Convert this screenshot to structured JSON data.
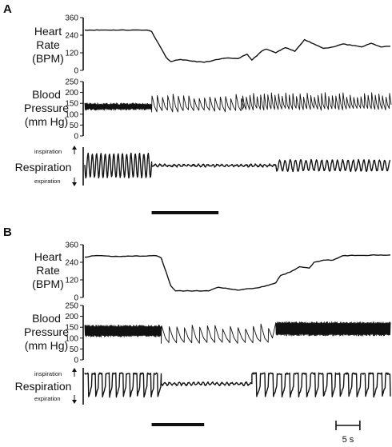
{
  "chart_data": [
    {
      "type": "line",
      "panel": "A",
      "heart_rate": {
        "label": [
          "Heart",
          "Rate",
          "(BPM)"
        ],
        "yticks": [
          0,
          120,
          240,
          360
        ],
        "ylim": [
          0,
          360
        ],
        "points": [
          [
            0,
            275
          ],
          [
            13,
            275
          ],
          [
            14,
            265
          ],
          [
            16,
            150
          ],
          [
            17,
            90
          ],
          [
            18,
            60
          ],
          [
            20,
            75
          ],
          [
            22,
            65
          ],
          [
            25,
            55
          ],
          [
            28,
            75
          ],
          [
            30,
            85
          ],
          [
            32,
            80
          ],
          [
            34,
            110
          ],
          [
            35,
            70
          ],
          [
            37,
            130
          ],
          [
            38,
            145
          ],
          [
            40,
            120
          ],
          [
            42,
            155
          ],
          [
            44,
            130
          ],
          [
            46,
            210
          ],
          [
            48,
            180
          ],
          [
            50,
            150
          ],
          [
            52,
            160
          ],
          [
            54,
            180
          ],
          [
            56,
            170
          ],
          [
            58,
            160
          ],
          [
            60,
            185
          ],
          [
            62,
            160
          ],
          [
            64,
            165
          ]
        ]
      },
      "blood_pressure": {
        "label": [
          "Blood",
          "Pressure",
          "(mm Hg)"
        ],
        "yticks": [
          0,
          50,
          100,
          150,
          200,
          250
        ],
        "ylim": [
          0,
          250
        ],
        "segments": [
          {
            "from": 0,
            "to": 14,
            "mode": "dense",
            "min": 118,
            "max": 152
          },
          {
            "from": 14,
            "to": 33,
            "mode": "slow",
            "min": 110,
            "max": 195,
            "period": 1.1
          },
          {
            "from": 33,
            "to": 64,
            "mode": "slow",
            "min": 118,
            "max": 200,
            "period": 0.75
          }
        ]
      },
      "respiration": {
        "label": "Respiration",
        "up_label": "inspiration",
        "down_label": "expiration",
        "segments": [
          {
            "from": 0,
            "to": 14,
            "amp": 1.0,
            "period": 0.9
          },
          {
            "from": 14,
            "to": 40,
            "amp": 0.08,
            "period": 1.0
          },
          {
            "from": 40,
            "to": 64,
            "amp": 0.45,
            "period": 1.1
          }
        ]
      },
      "stimulus_bar": [
        14,
        28
      ]
    },
    {
      "type": "line",
      "panel": "B",
      "heart_rate": {
        "label": [
          "Heart",
          "Rate",
          "(BPM)"
        ],
        "yticks": [
          0,
          120,
          240,
          360
        ],
        "ylim": [
          0,
          360
        ],
        "points": [
          [
            0,
            275
          ],
          [
            2,
            285
          ],
          [
            6,
            280
          ],
          [
            15,
            285
          ],
          [
            16,
            270
          ],
          [
            18,
            80
          ],
          [
            19,
            45
          ],
          [
            22,
            45
          ],
          [
            26,
            45
          ],
          [
            28,
            70
          ],
          [
            30,
            60
          ],
          [
            32,
            50
          ],
          [
            36,
            65
          ],
          [
            38,
            80
          ],
          [
            40,
            100
          ],
          [
            41,
            150
          ],
          [
            42,
            160
          ],
          [
            44,
            190
          ],
          [
            45,
            210
          ],
          [
            47,
            200
          ],
          [
            48,
            240
          ],
          [
            50,
            255
          ],
          [
            52,
            255
          ],
          [
            54,
            285
          ],
          [
            58,
            287
          ],
          [
            62,
            290
          ],
          [
            64,
            290
          ]
        ]
      },
      "blood_pressure": {
        "label": [
          "Blood",
          "Pressure",
          "(mm Hg)"
        ],
        "yticks": [
          0,
          50,
          100,
          150,
          200,
          250
        ],
        "ylim": [
          0,
          250
        ],
        "segments": [
          {
            "from": 0,
            "to": 16,
            "mode": "dense",
            "min": 105,
            "max": 160
          },
          {
            "from": 16,
            "to": 40,
            "mode": "slow",
            "min": 75,
            "max": 165,
            "period": 1.6
          },
          {
            "from": 40,
            "to": 64,
            "mode": "dense",
            "min": 110,
            "max": 175
          }
        ]
      },
      "respiration": {
        "label": "Respiration",
        "up_label": "inspiration",
        "down_label": "expiration",
        "segments": [
          {
            "from": 0,
            "to": 16,
            "amp": 1.0,
            "period": 1.45
          },
          {
            "from": 16,
            "to": 35,
            "amp": 0.1,
            "period": 1.0
          },
          {
            "from": 35,
            "to": 64,
            "amp": 1.0,
            "period": 1.75
          }
        ]
      },
      "stimulus_bar": [
        14,
        25
      ]
    }
  ],
  "scale_bar": {
    "label": "5 s",
    "seconds": 5
  }
}
